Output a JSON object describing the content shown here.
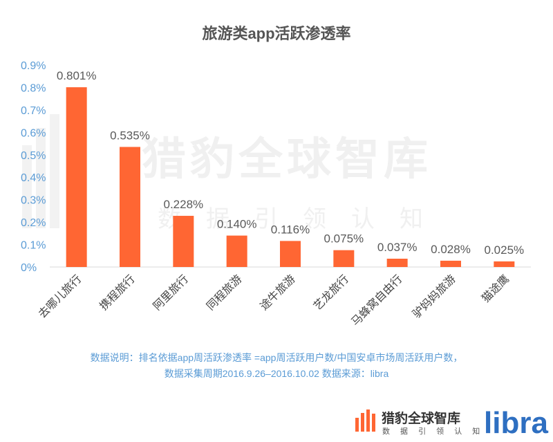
{
  "chart_data": {
    "type": "bar",
    "title": "旅游类app活跃渗透率",
    "categories": [
      "去哪儿旅行",
      "携程旅行",
      "阿里旅行",
      "同程旅游",
      "途牛旅游",
      "艺龙旅行",
      "马蜂窝自由行",
      "驴妈妈旅游",
      "猫途鹰"
    ],
    "values": [
      0.801,
      0.535,
      0.228,
      0.14,
      0.116,
      0.075,
      0.037,
      0.028,
      0.025
    ],
    "data_labels": [
      "0.801%",
      "0.535%",
      "0.228%",
      "0.140%",
      "0.116%",
      "0.075%",
      "0.037%",
      "0.028%",
      "0.025%"
    ],
    "yticks": [
      "0%",
      "0.1%",
      "0.2%",
      "0.3%",
      "0.4%",
      "0.5%",
      "0.6%",
      "0.7%",
      "0.8%",
      "0.9%"
    ],
    "ylim": [
      0,
      0.9
    ],
    "unit": "%",
    "bar_color": "#ff6633",
    "grid": false,
    "legend": "none"
  },
  "watermark": {
    "main": "猎豹全球智库",
    "sub": "数据引领认知"
  },
  "notes": {
    "line1": "数据说明：排名依据app周活跃渗透率  =app周活跃用户数/中国安卓市场周活跃用户数，",
    "line2": "数据采集周期2016.9.26–2016.10.02 数据来源：libra"
  },
  "footer": {
    "brand_cn": "猎豹全球智库",
    "brand_sub": "数 据 引 领 认 知",
    "brand_logo_icon": "cheetah-bars-icon",
    "libra": "libra",
    "accent": "#ff6633",
    "libra_color": "#2e6fc1"
  }
}
